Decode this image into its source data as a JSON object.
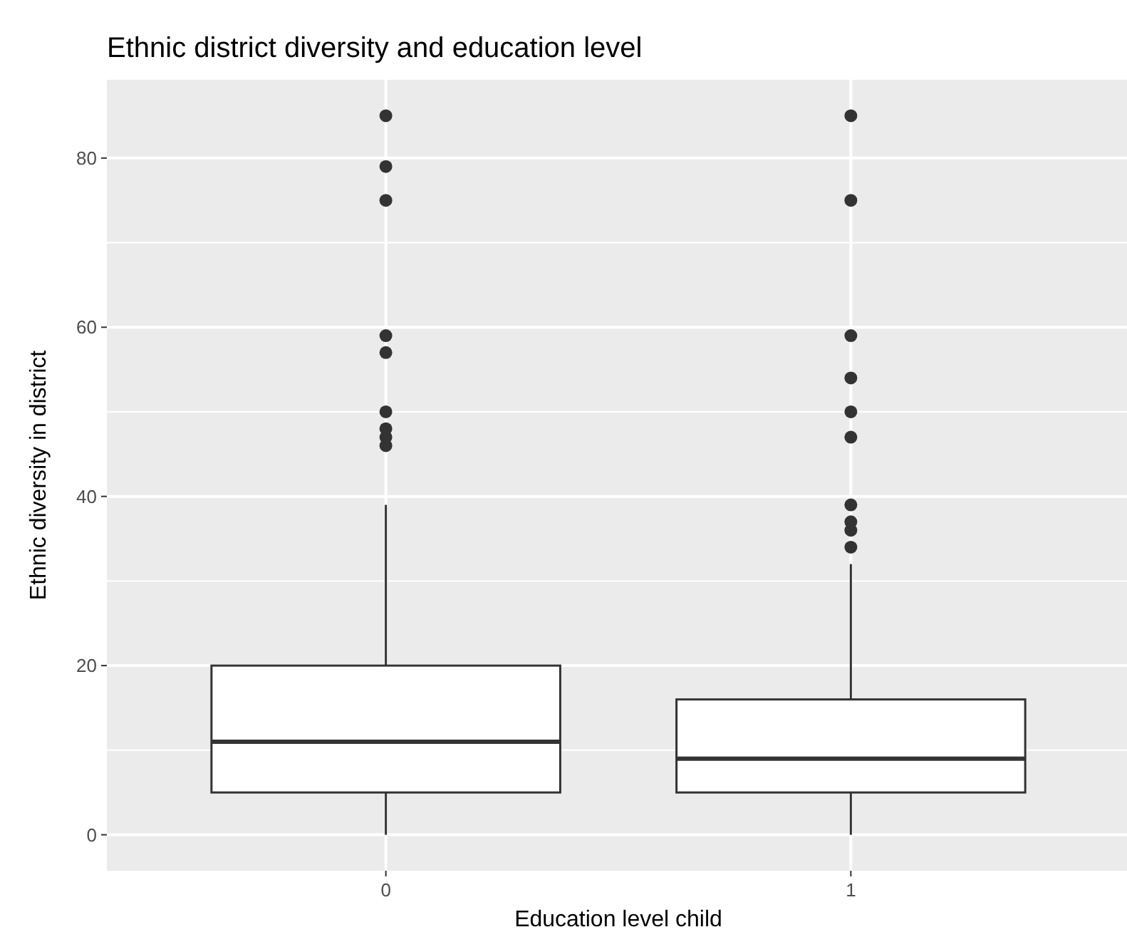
{
  "chart_data": {
    "type": "box",
    "title": "Ethnic district diversity and education level",
    "xlabel": "Education level child",
    "ylabel": "Ethnic diversity in district",
    "categories": [
      "0",
      "1"
    ],
    "boxes": [
      {
        "low": 0,
        "q1": 5,
        "median": 11,
        "q3": 20,
        "high": 39,
        "outliers": [
          46,
          47,
          48,
          50,
          57,
          59,
          75,
          79,
          85
        ]
      },
      {
        "low": 0,
        "q1": 5,
        "median": 9,
        "q3": 16,
        "high": 32,
        "outliers": [
          34,
          36,
          37,
          39,
          47,
          50,
          54,
          59,
          75,
          85
        ]
      }
    ],
    "ylim": [
      -4.25,
      89.25
    ],
    "yticks": [
      0,
      20,
      40,
      60,
      80
    ],
    "grid": true,
    "color": "#333333"
  }
}
